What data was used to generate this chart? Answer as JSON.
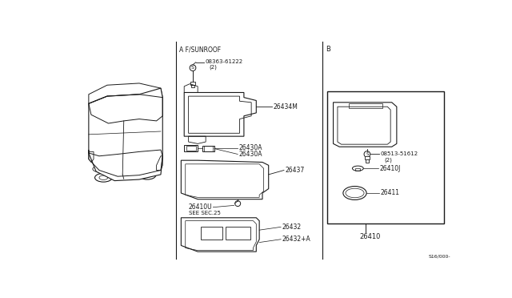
{
  "bg_color": "#ffffff",
  "line_color": "#1a1a1a",
  "fig_width": 6.4,
  "fig_height": 3.72,
  "dpi": 100,
  "watermark": "S16/000-",
  "section_A_label": "A F/SUNROOF",
  "section_B_label": "B",
  "part_26410": "26410",
  "part_26411": "26411",
  "part_26410J": "26410J",
  "part_26432": "26432",
  "part_26432A": "26432+A",
  "part_26437": "26437",
  "part_26410U": "26410U",
  "part_26434M": "26434M",
  "part_26430A1": "26430A",
  "part_26430A2": "26430A",
  "part_08363": "08363-61222",
  "part_08363_qty": "(2)",
  "part_08513": "08513-51612",
  "part_08513_qty": "(2)",
  "see_sec": "SEE SEC.25"
}
